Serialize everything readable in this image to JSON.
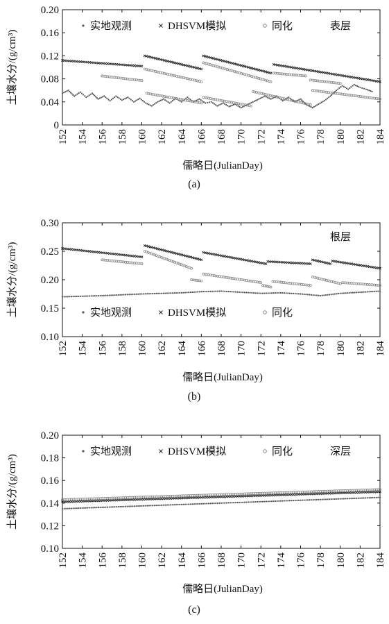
{
  "chart_data": [
    {
      "panel": "a",
      "type": "scatter",
      "caption": "(a)",
      "layer_label": "表层",
      "xlabel": "儒略日(JulianDay)",
      "ylabel": "土壤水分/(g/cm³)",
      "xlim": [
        152,
        184
      ],
      "ylim": [
        0,
        0.2
      ],
      "xticks": [
        "152",
        "154",
        "156",
        "158",
        "160",
        "162",
        "164",
        "166",
        "168",
        "170",
        "172",
        "174",
        "176",
        "178",
        "180",
        "182",
        "184"
      ],
      "yticks": [
        "0",
        "0.04",
        "0.08",
        "0.12",
        "0.16",
        "0.20"
      ],
      "grid": false,
      "legend_position": "top",
      "series": [
        {
          "name": "实地观测",
          "marker": "dot",
          "segments": [
            [
              [
                152,
                0.055
              ],
              [
                152.6,
                0.06
              ],
              [
                153.2,
                0.05
              ],
              [
                153.8,
                0.057
              ],
              [
                154.4,
                0.048
              ],
              [
                155,
                0.055
              ],
              [
                155.6,
                0.045
              ],
              [
                156.2,
                0.05
              ],
              [
                156.8,
                0.042
              ],
              [
                157.4,
                0.05
              ],
              [
                158,
                0.043
              ],
              [
                158.6,
                0.048
              ],
              [
                159.2,
                0.04
              ],
              [
                159.8,
                0.046
              ],
              [
                160.4,
                0.038
              ],
              [
                161,
                0.033
              ],
              [
                161.6,
                0.04
              ],
              [
                162.2,
                0.045
              ],
              [
                162.8,
                0.038
              ],
              [
                163.4,
                0.046
              ],
              [
                164,
                0.04
              ],
              [
                164.6,
                0.048
              ],
              [
                165.2,
                0.04
              ],
              [
                165.8,
                0.045
              ],
              [
                166.4,
                0.038
              ],
              [
                167,
                0.04
              ],
              [
                167.6,
                0.033
              ],
              [
                168.2,
                0.038
              ],
              [
                168.8,
                0.032
              ],
              [
                169.4,
                0.036
              ],
              [
                170,
                0.03
              ],
              [
                170.6,
                0.035
              ],
              [
                171.2,
                0.04
              ],
              [
                171.8,
                0.045
              ],
              [
                172.4,
                0.05
              ],
              [
                173,
                0.045
              ],
              [
                173.6,
                0.05
              ],
              [
                174.2,
                0.042
              ],
              [
                174.8,
                0.048
              ],
              [
                175.4,
                0.04
              ],
              [
                176,
                0.045
              ],
              [
                176.6,
                0.035
              ],
              [
                177.2,
                0.03
              ],
              [
                177.8,
                0.036
              ],
              [
                178.4,
                0.042
              ],
              [
                179,
                0.05
              ],
              [
                179.6,
                0.06
              ],
              [
                180.2,
                0.068
              ],
              [
                180.8,
                0.062
              ],
              [
                181.4,
                0.07
              ],
              [
                182,
                0.065
              ],
              [
                182.6,
                0.062
              ],
              [
                183.2,
                0.058
              ]
            ]
          ]
        },
        {
          "name": "DHSVM模拟",
          "marker": "x",
          "segments": [
            [
              [
                152,
                0.112
              ],
              [
                160,
                0.102
              ]
            ],
            [
              [
                160.3,
                0.12
              ],
              [
                166,
                0.097
              ]
            ],
            [
              [
                166.2,
                0.12
              ],
              [
                173,
                0.09
              ]
            ],
            [
              [
                173.3,
                0.105
              ],
              [
                184,
                0.075
              ]
            ]
          ]
        },
        {
          "name": "同化",
          "marker": "circle",
          "segments": [
            [
              [
                156,
                0.085
              ],
              [
                160,
                0.077
              ]
            ],
            [
              [
                160.3,
                0.097
              ],
              [
                166,
                0.075
              ]
            ],
            [
              [
                166.2,
                0.108
              ],
              [
                173,
                0.075
              ]
            ],
            [
              [
                173.3,
                0.09
              ],
              [
                176.5,
                0.085
              ]
            ],
            [
              [
                177,
                0.078
              ],
              [
                180,
                0.072
              ]
            ],
            [
              [
                160.5,
                0.055
              ],
              [
                166,
                0.038
              ]
            ],
            [
              [
                166.2,
                0.048
              ],
              [
                171,
                0.033
              ]
            ],
            [
              [
                171.2,
                0.058
              ],
              [
                177,
                0.035
              ]
            ],
            [
              [
                177.2,
                0.06
              ],
              [
                184,
                0.045
              ]
            ]
          ]
        }
      ]
    },
    {
      "panel": "b",
      "type": "scatter",
      "caption": "(b)",
      "layer_label": "根层",
      "xlabel": "儒略日(JulianDay)",
      "ylabel": "土壤水分/(g/cm³)",
      "xlim": [
        152,
        184
      ],
      "ylim": [
        0.1,
        0.3
      ],
      "xticks": [
        "152",
        "154",
        "156",
        "158",
        "160",
        "162",
        "164",
        "166",
        "168",
        "170",
        "172",
        "174",
        "176",
        "178",
        "180",
        "182",
        "184"
      ],
      "yticks": [
        "0.10",
        "0.15",
        "0.20",
        "0.25",
        "0.30"
      ],
      "grid": false,
      "legend_position": "bottom",
      "series": [
        {
          "name": "实地观测",
          "marker": "dot",
          "segments": [
            [
              [
                152,
                0.17
              ],
              [
                156,
                0.172
              ],
              [
                160,
                0.175
              ],
              [
                164,
                0.177
              ],
              [
                166,
                0.179
              ],
              [
                168,
                0.18
              ],
              [
                170,
                0.178
              ],
              [
                172,
                0.176
              ],
              [
                174,
                0.177
              ],
              [
                176,
                0.175
              ],
              [
                178,
                0.172
              ],
              [
                180,
                0.176
              ],
              [
                182,
                0.178
              ],
              [
                184,
                0.18
              ]
            ]
          ]
        },
        {
          "name": "DHSVM模拟",
          "marker": "x",
          "segments": [
            [
              [
                152,
                0.255
              ],
              [
                160,
                0.24
              ]
            ],
            [
              [
                160.3,
                0.26
              ],
              [
                166,
                0.235
              ]
            ],
            [
              [
                166.2,
                0.248
              ],
              [
                172.5,
                0.228
              ]
            ],
            [
              [
                172.7,
                0.232
              ],
              [
                177,
                0.228
              ]
            ],
            [
              [
                177.2,
                0.235
              ],
              [
                179,
                0.228
              ]
            ],
            [
              [
                179.2,
                0.233
              ],
              [
                184,
                0.22
              ]
            ]
          ]
        },
        {
          "name": "同化",
          "marker": "circle",
          "segments": [
            [
              [
                156,
                0.235
              ],
              [
                160,
                0.228
              ]
            ],
            [
              [
                160.3,
                0.25
              ],
              [
                165,
                0.22
              ]
            ],
            [
              [
                165,
                0.2
              ],
              [
                166,
                0.198
              ]
            ],
            [
              [
                166.2,
                0.21
              ],
              [
                172,
                0.195
              ]
            ],
            [
              [
                172.2,
                0.19
              ],
              [
                173,
                0.187
              ]
            ],
            [
              [
                173.2,
                0.197
              ],
              [
                177,
                0.19
              ]
            ],
            [
              [
                177.2,
                0.205
              ],
              [
                180,
                0.193
              ]
            ],
            [
              [
                180.2,
                0.195
              ],
              [
                184,
                0.19
              ]
            ]
          ]
        }
      ]
    },
    {
      "panel": "c",
      "type": "scatter",
      "caption": "(c)",
      "layer_label": "深层",
      "xlabel": "儒略日(JulianDay)",
      "ylabel": "土壤水分/(g/cm³)",
      "xlim": [
        152,
        184
      ],
      "ylim": [
        0.1,
        0.2
      ],
      "xticks": [
        "152",
        "154",
        "156",
        "158",
        "160",
        "162",
        "164",
        "166",
        "168",
        "170",
        "172",
        "174",
        "176",
        "178",
        "180",
        "182",
        "184"
      ],
      "yticks": [
        "0.10",
        "0.12",
        "0.14",
        "0.16",
        "0.18",
        "0.20"
      ],
      "grid": false,
      "legend_position": "top",
      "series": [
        {
          "name": "实地观测",
          "marker": "dot",
          "segments": [
            [
              [
                152,
                0.135
              ],
              [
                184,
                0.145
              ]
            ]
          ]
        },
        {
          "name": "DHSVM模拟",
          "marker": "x",
          "segments": [
            [
              [
                152,
                0.141
              ],
              [
                184,
                0.15
              ]
            ]
          ]
        },
        {
          "name": "同化",
          "marker": "circle",
          "segments": [
            [
              [
                152,
                0.143
              ],
              [
                184,
                0.152
              ]
            ]
          ]
        }
      ]
    }
  ]
}
